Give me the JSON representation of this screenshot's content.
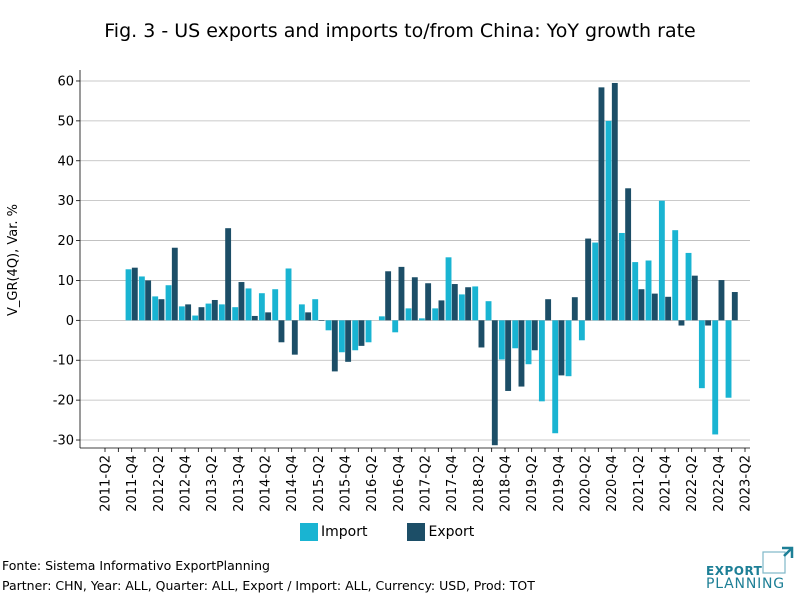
{
  "page": {
    "title": "Fig. 3 - US exports and imports to/from China: YoY growth rate",
    "source": "Fonte: Sistema Informativo ExportPlanning",
    "filters": "Partner: CHN, Year: ALL, Quarter: ALL, Export / Import: ALL, Currency: USD, Prod: TOT",
    "logo": {
      "line1": "EXPORT",
      "line2": "PLANNING",
      "color": "#1d7f96"
    }
  },
  "chart_data": {
    "type": "bar",
    "title": "Fig. 3 - US exports and imports to/from China: YoY growth rate",
    "ylabel": "V_GR(4Q), Var. %",
    "xlabel": "",
    "ylim": [
      -32,
      62
    ],
    "yticks": [
      -30,
      -20,
      -10,
      0,
      10,
      20,
      30,
      40,
      50,
      60
    ],
    "grid": "horizontal",
    "legend_position": "bottom",
    "categories": [
      "2011-Q2",
      "2011-Q3",
      "2011-Q4",
      "2012-Q1",
      "2012-Q2",
      "2012-Q3",
      "2012-Q4",
      "2013-Q1",
      "2013-Q2",
      "2013-Q3",
      "2013-Q4",
      "2014-Q1",
      "2014-Q2",
      "2014-Q3",
      "2014-Q4",
      "2015-Q1",
      "2015-Q2",
      "2015-Q3",
      "2015-Q4",
      "2016-Q1",
      "2016-Q2",
      "2016-Q3",
      "2016-Q4",
      "2017-Q1",
      "2017-Q2",
      "2017-Q3",
      "2017-Q4",
      "2018-Q1",
      "2018-Q2",
      "2018-Q3",
      "2018-Q4",
      "2019-Q1",
      "2019-Q2",
      "2019-Q3",
      "2019-Q4",
      "2020-Q1",
      "2020-Q2",
      "2020-Q3",
      "2020-Q4",
      "2021-Q1",
      "2021-Q2",
      "2021-Q3",
      "2021-Q4",
      "2022-Q1",
      "2022-Q2",
      "2022-Q3",
      "2022-Q4",
      "2023-Q1",
      "2023-Q2"
    ],
    "tick_labels": [
      "2011-Q2",
      "",
      "2011-Q4",
      "",
      "2012-Q2",
      "",
      "2012-Q4",
      "",
      "2013-Q2",
      "",
      "2013-Q4",
      "",
      "2014-Q2",
      "",
      "2014-Q4",
      "",
      "2015-Q2",
      "",
      "2015-Q4",
      "",
      "2016-Q2",
      "",
      "2016-Q4",
      "",
      "2017-Q2",
      "",
      "2017-Q4",
      "",
      "2018-Q2",
      "",
      "2018-Q4",
      "",
      "2019-Q2",
      "",
      "2019-Q4",
      "",
      "2020-Q2",
      "",
      "2020-Q4",
      "",
      "2021-Q2",
      "",
      "2021-Q4",
      "",
      "2022-Q2",
      "",
      "2022-Q4",
      "",
      "2023-Q2"
    ],
    "series": [
      {
        "name": "Import",
        "color": "#19b4d2",
        "values": [
          null,
          null,
          12.8,
          11.0,
          6.0,
          8.8,
          3.5,
          1.2,
          4.2,
          4.0,
          3.3,
          8.0,
          6.8,
          7.8,
          13.0,
          4.0,
          5.3,
          -2.5,
          -8.0,
          -7.5,
          -5.5,
          1.0,
          -3.0,
          3.0,
          0.5,
          3.0,
          15.8,
          6.5,
          8.5,
          4.8,
          -9.8,
          -7.0,
          -11.0,
          -20.3,
          -28.3,
          -14.0,
          -5.0,
          19.5,
          50.0,
          21.9,
          14.6,
          15.0,
          30.0,
          22.6,
          16.9,
          -17.0,
          -28.6,
          -19.4,
          null
        ],
        "x_offset_override": null
      },
      {
        "name": "Export",
        "color": "#1c4e67",
        "values": [
          null,
          null,
          13.2,
          10.0,
          5.3,
          18.2,
          4.0,
          3.3,
          5.1,
          23.1,
          9.6,
          1.1,
          2.0,
          -5.5,
          -8.6,
          2.0,
          0.0,
          -12.8,
          -10.4,
          -6.4,
          null,
          12.3,
          13.4,
          10.8,
          9.3,
          5.0,
          9.1,
          8.3,
          -6.8,
          -31.3,
          -17.7,
          -16.6,
          -7.5,
          5.3,
          -13.8,
          5.8,
          20.5,
          58.4,
          59.5,
          33.1,
          7.8,
          6.7,
          5.9,
          -1.3,
          11.2,
          -1.3,
          10.1,
          7.1,
          null
        ]
      }
    ]
  }
}
